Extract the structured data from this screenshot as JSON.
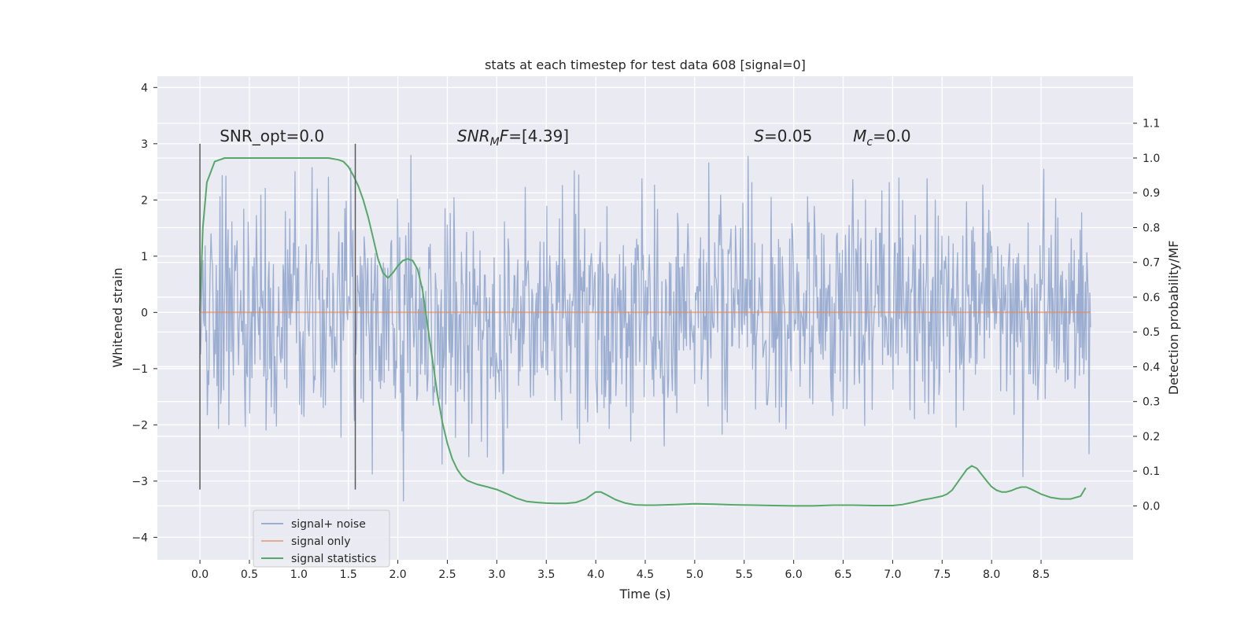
{
  "chart_data": {
    "type": "line",
    "title": "stats at each timestep for test data 608 [signal=0]",
    "xlabel": "Time (s)",
    "ylabel": "Whitened strain",
    "y2label": "Detection probability/MF",
    "xlim": [
      -0.43,
      9.43
    ],
    "ylim": [
      -4.4,
      4.2
    ],
    "y2lim": [
      -0.155,
      1.235
    ],
    "xticks": [
      0.0,
      0.5,
      1.0,
      1.5,
      2.0,
      2.5,
      3.0,
      3.5,
      4.0,
      4.5,
      5.0,
      5.5,
      6.0,
      6.5,
      7.0,
      7.5,
      8.0,
      8.5
    ],
    "xtick_labels": [
      "0.0",
      "0.5",
      "1.0",
      "1.5",
      "2.0",
      "2.5",
      "3.0",
      "3.5",
      "4.0",
      "4.5",
      "5.0",
      "5.5",
      "6.0",
      "6.5",
      "7.0",
      "7.5",
      "8.0",
      "8.5"
    ],
    "yticks": [
      -4,
      -3,
      -2,
      -1,
      0,
      1,
      2,
      3,
      4
    ],
    "ytick_labels": [
      "−4",
      "−3",
      "−2",
      "−1",
      "0",
      "1",
      "2",
      "3",
      "4"
    ],
    "y2ticks": [
      0.0,
      0.1,
      0.2,
      0.3,
      0.4,
      0.5,
      0.6,
      0.7,
      0.8,
      0.9,
      1.0,
      1.1
    ],
    "y2tick_labels": [
      "0.0",
      "0.1",
      "0.2",
      "0.3",
      "0.4",
      "0.5",
      "0.6",
      "0.7",
      "0.8",
      "0.9",
      "1.0",
      "1.1"
    ],
    "grid": true,
    "legend_position": "bottom-left",
    "series": [
      {
        "name": "signal+ noise",
        "color": "#4c72b0",
        "axis": "left",
        "noise": {
          "x_start": 0.0,
          "x_end": 9.0,
          "samples": 1200,
          "sigma": 1.0,
          "seed": 608
        }
      },
      {
        "name": "signal only",
        "color": "#dd8452",
        "axis": "left",
        "x": [
          0.0,
          9.0
        ],
        "values": [
          0.0,
          0.0
        ]
      },
      {
        "name": "signal statistics",
        "color": "#55a868",
        "axis": "right",
        "x": [
          0.0,
          0.03,
          0.07,
          0.15,
          0.25,
          0.4,
          0.6,
          0.8,
          1.0,
          1.2,
          1.3,
          1.4,
          1.45,
          1.5,
          1.55,
          1.6,
          1.65,
          1.7,
          1.75,
          1.8,
          1.85,
          1.9,
          1.95,
          2.0,
          2.05,
          2.1,
          2.15,
          2.2,
          2.25,
          2.3,
          2.35,
          2.4,
          2.45,
          2.5,
          2.55,
          2.6,
          2.65,
          2.7,
          2.8,
          2.9,
          3.0,
          3.1,
          3.2,
          3.3,
          3.4,
          3.5,
          3.6,
          3.7,
          3.8,
          3.9,
          3.95,
          4.0,
          4.05,
          4.1,
          4.2,
          4.3,
          4.4,
          4.5,
          4.6,
          4.8,
          5.0,
          5.2,
          5.4,
          5.6,
          5.8,
          6.0,
          6.2,
          6.4,
          6.6,
          6.8,
          7.0,
          7.1,
          7.2,
          7.3,
          7.4,
          7.5,
          7.55,
          7.6,
          7.65,
          7.7,
          7.75,
          7.8,
          7.85,
          7.9,
          7.95,
          8.0,
          8.05,
          8.1,
          8.15,
          8.2,
          8.25,
          8.3,
          8.35,
          8.4,
          8.5,
          8.6,
          8.7,
          8.8,
          8.9,
          8.95
        ],
        "values": [
          0.56,
          0.8,
          0.93,
          0.99,
          1.0,
          1.0,
          1.0,
          1.0,
          1.0,
          1.0,
          1.0,
          0.995,
          0.99,
          0.975,
          0.95,
          0.92,
          0.88,
          0.83,
          0.77,
          0.71,
          0.67,
          0.655,
          0.67,
          0.69,
          0.705,
          0.71,
          0.705,
          0.68,
          0.62,
          0.52,
          0.42,
          0.32,
          0.24,
          0.18,
          0.135,
          0.105,
          0.085,
          0.073,
          0.062,
          0.055,
          0.047,
          0.035,
          0.022,
          0.013,
          0.01,
          0.008,
          0.007,
          0.007,
          0.01,
          0.02,
          0.03,
          0.04,
          0.04,
          0.033,
          0.018,
          0.008,
          0.003,
          0.002,
          0.002,
          0.004,
          0.006,
          0.005,
          0.003,
          0.002,
          0.001,
          0.0,
          0.0,
          0.002,
          0.002,
          0.001,
          0.001,
          0.004,
          0.01,
          0.017,
          0.022,
          0.028,
          0.034,
          0.045,
          0.065,
          0.085,
          0.105,
          0.115,
          0.108,
          0.09,
          0.072,
          0.055,
          0.045,
          0.04,
          0.04,
          0.044,
          0.05,
          0.054,
          0.054,
          0.048,
          0.034,
          0.024,
          0.02,
          0.02,
          0.028,
          0.052
        ]
      }
    ],
    "vlines": {
      "color": "#595959",
      "x": [
        0.0,
        1.57
      ],
      "y_range": [
        -3.15,
        3.0
      ]
    },
    "annotations": [
      {
        "name": "snr-opt-annotation",
        "x": 0.2,
        "y": 3.0,
        "text": "SNR_opt=0.0"
      },
      {
        "name": "snr-mf-annotation",
        "x": 2.6,
        "y": 3.0,
        "text": "SNR_MF=[4.39]"
      },
      {
        "name": "s-annotation",
        "x": 5.6,
        "y": 3.0,
        "text": "S=0.05"
      },
      {
        "name": "mc-annotation",
        "x": 6.6,
        "y": 3.0,
        "text": "M_c=0.0"
      }
    ]
  }
}
